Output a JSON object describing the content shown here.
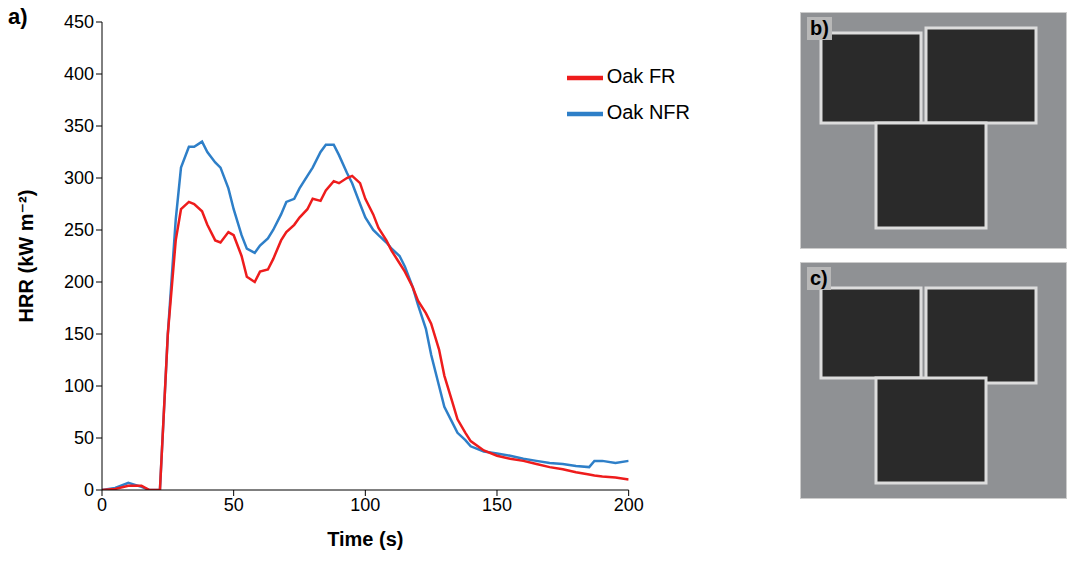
{
  "chart_data": {
    "type": "line",
    "annotations": [
      "a)"
    ],
    "x_label": "Time (s)",
    "y_label": "HRR (kW m⁻²)",
    "x": [
      0,
      5,
      10,
      15,
      18,
      20,
      22,
      25,
      28,
      30,
      33,
      35,
      38,
      40,
      43,
      45,
      48,
      50,
      53,
      55,
      58,
      60,
      63,
      65,
      68,
      70,
      73,
      75,
      78,
      80,
      83,
      85,
      88,
      90,
      93,
      95,
      98,
      100,
      103,
      105,
      108,
      110,
      113,
      115,
      118,
      120,
      123,
      125,
      128,
      130,
      133,
      135,
      138,
      140,
      145,
      150,
      155,
      160,
      165,
      170,
      175,
      180,
      185,
      187,
      190,
      195,
      200
    ],
    "series": [
      {
        "name": "Oak NFR",
        "color": "#2e7fc8",
        "values": [
          0,
          2,
          7,
          3,
          0,
          0,
          0,
          150,
          260,
          310,
          330,
          330,
          335,
          325,
          315,
          310,
          290,
          270,
          245,
          232,
          228,
          235,
          242,
          250,
          265,
          277,
          280,
          290,
          302,
          310,
          325,
          332,
          332,
          322,
          305,
          295,
          275,
          262,
          250,
          245,
          238,
          232,
          225,
          215,
          195,
          178,
          155,
          130,
          100,
          80,
          65,
          55,
          48,
          42,
          37,
          35,
          33,
          30,
          28,
          26,
          25,
          23,
          22,
          28,
          28,
          26,
          28
        ]
      },
      {
        "name": "Oak FR",
        "color": "#ee1c1c",
        "values": [
          0,
          1,
          4,
          4,
          0,
          0,
          0,
          150,
          240,
          270,
          277,
          275,
          268,
          255,
          240,
          238,
          248,
          245,
          225,
          205,
          200,
          210,
          212,
          222,
          240,
          248,
          255,
          262,
          270,
          280,
          278,
          288,
          297,
          295,
          300,
          302,
          295,
          280,
          265,
          252,
          240,
          230,
          218,
          210,
          195,
          182,
          170,
          160,
          135,
          110,
          85,
          68,
          55,
          47,
          38,
          33,
          30,
          28,
          25,
          22,
          20,
          17,
          15,
          14,
          13,
          12,
          10
        ]
      }
    ],
    "xlim": [
      0,
      200
    ],
    "xticks": [
      0,
      50,
      100,
      150,
      200
    ],
    "ylim": [
      0,
      450
    ],
    "yticks": [
      0,
      50,
      100,
      150,
      200,
      250,
      300,
      350,
      400,
      450
    ],
    "grid": false,
    "legend": "upper right"
  },
  "photos": [
    {
      "label": "b)"
    },
    {
      "label": "c)"
    }
  ]
}
